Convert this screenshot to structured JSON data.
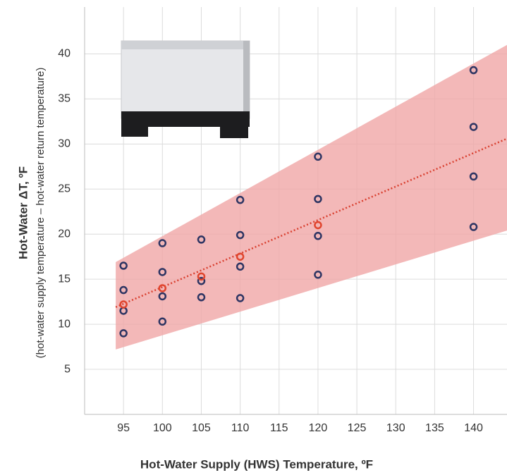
{
  "chart_data": {
    "type": "scatter",
    "y_label": "Hot-Water ΔT, ºF",
    "y_sublabel": "(hot-water supply temperature – hot-water return temperature)",
    "x_label": "Hot-Water Supply (HWS) Temperature, ºF",
    "xlim": [
      90,
      144.3
    ],
    "ylim": [
      0,
      45.2
    ],
    "xticks": [
      95,
      100,
      105,
      110,
      115,
      120,
      125,
      130,
      135,
      140
    ],
    "yticks": [
      5,
      10,
      15,
      20,
      25,
      30,
      35,
      40
    ],
    "grid": true,
    "series": [
      {
        "color": "#2e3563",
        "x": [
          95,
          95,
          95,
          95,
          100,
          100,
          100,
          100,
          105,
          105,
          105,
          110,
          110,
          110,
          110,
          120,
          120,
          120,
          120,
          140,
          140,
          140,
          140
        ],
        "values": [
          16.5,
          13.8,
          11.5,
          9.0,
          19.0,
          15.8,
          13.1,
          10.3,
          19.4,
          14.8,
          13.0,
          23.8,
          19.9,
          16.4,
          12.9,
          28.6,
          23.9,
          19.8,
          15.5,
          38.2,
          31.9,
          26.4,
          20.8
        ]
      },
      {
        "color": "#e0452e",
        "x": [
          95,
          100,
          105,
          110,
          120
        ],
        "values": [
          12.2,
          14.0,
          15.3,
          17.5,
          21.0
        ]
      }
    ],
    "trend": {
      "color": "#d94030",
      "x": [
        94,
        144.3
      ],
      "values": [
        11.9,
        30.6
      ]
    },
    "band": {
      "color": "#f0a6a6",
      "x": [
        94,
        144.3
      ],
      "upper": [
        16.9,
        41.0
      ],
      "lower": [
        7.2,
        20.4
      ]
    }
  }
}
